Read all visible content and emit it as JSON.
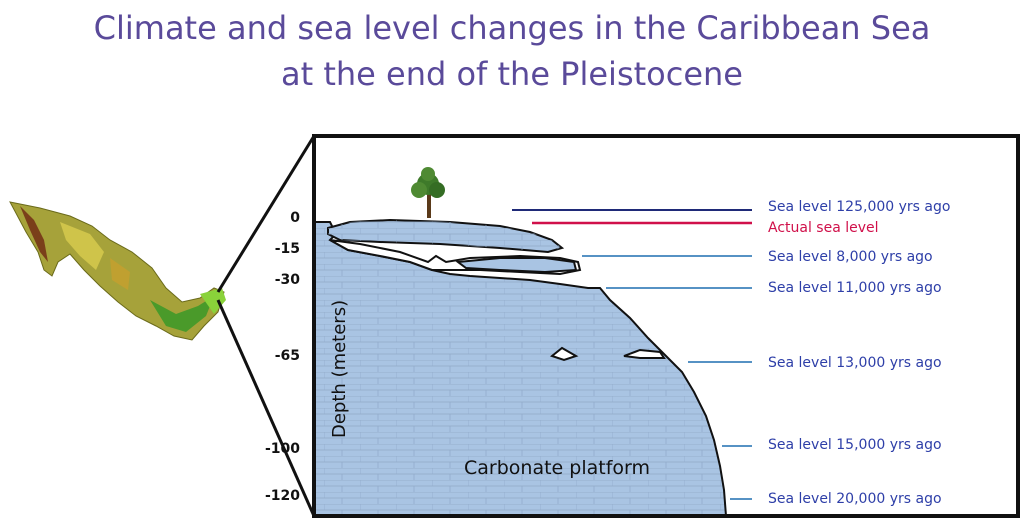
{
  "title": {
    "line1": "Climate and sea level changes in the Caribbean Sea",
    "line2": "at the end of the Pleistocene"
  },
  "axis": {
    "label": "Depth (meters)",
    "ticks": [
      "0",
      "-15",
      "-30",
      "-65",
      "-100",
      "-120"
    ]
  },
  "platform_label": "Carbonate platform",
  "sea_levels": [
    {
      "label": "Sea level 125,000 yrs ago",
      "color": "#1f2a78"
    },
    {
      "label": "Actual sea level",
      "color": "#d0104a"
    },
    {
      "label": "Sea level 8,000 yrs ago",
      "color": "#1f6fb0"
    },
    {
      "label": "Sea level 11,000 yrs ago",
      "color": "#1f6fb0"
    },
    {
      "label": "Sea level 13,000 yrs ago",
      "color": "#1f6fb0"
    },
    {
      "label": "Sea level 15,000 yrs ago",
      "color": "#1f6fb0"
    },
    {
      "label": "Sea level 20,000 yrs ago",
      "color": "#1f6fb0"
    }
  ],
  "colors": {
    "title": "#5a4a9a",
    "platform": "#a9c4e3",
    "label_text": "#2e3fa8",
    "actual_label": "#d0104a"
  },
  "icons": [
    "mexico-map-icon",
    "tree-icon"
  ]
}
